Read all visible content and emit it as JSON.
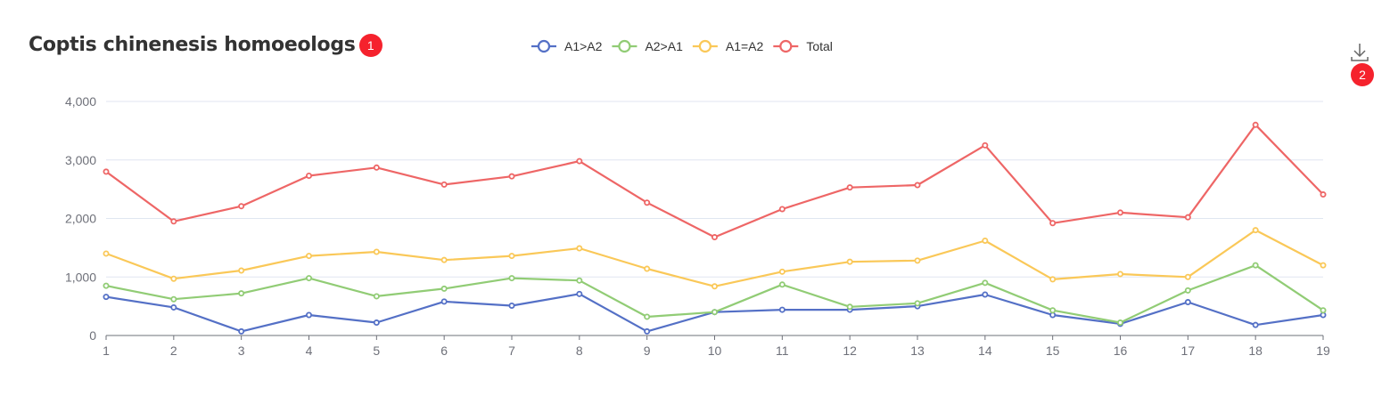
{
  "header": {
    "title": "Coptis chinenesis homoeologs",
    "title_badge": "1",
    "download_badge": "2",
    "download_icon": "download-icon"
  },
  "colors": {
    "A1>A2": "#5470c6",
    "A2>A1": "#91cc75",
    "A1=A2": "#fac858",
    "Total": "#ee6666"
  },
  "chart_data": {
    "type": "line",
    "title": "Coptis chinenesis homoeologs",
    "x": [
      "1",
      "2",
      "3",
      "4",
      "5",
      "6",
      "7",
      "8",
      "9",
      "10",
      "11",
      "12",
      "13",
      "14",
      "15",
      "16",
      "17",
      "18",
      "19"
    ],
    "ylim": [
      0,
      4000
    ],
    "yticks": [
      0,
      1000,
      2000,
      3000,
      4000
    ],
    "ytick_labels": [
      "0",
      "1,000",
      "2,000",
      "3,000",
      "4,000"
    ],
    "grid": true,
    "legend_position": "top-center",
    "series": [
      {
        "name": "A1>A2",
        "values": [
          660,
          480,
          70,
          350,
          220,
          580,
          510,
          710,
          70,
          400,
          440,
          440,
          500,
          700,
          350,
          200,
          570,
          180,
          350
        ]
      },
      {
        "name": "A2>A1",
        "values": [
          850,
          620,
          720,
          980,
          670,
          800,
          980,
          940,
          320,
          400,
          870,
          490,
          550,
          900,
          430,
          220,
          770,
          1200,
          430
        ]
      },
      {
        "name": "A1=A2",
        "values": [
          1400,
          970,
          1110,
          1360,
          1430,
          1290,
          1360,
          1490,
          1140,
          840,
          1090,
          1260,
          1280,
          1620,
          960,
          1050,
          1000,
          1800,
          1200
        ]
      },
      {
        "name": "Total",
        "values": [
          2800,
          1950,
          2210,
          2730,
          2870,
          2580,
          2720,
          2980,
          2270,
          1680,
          2160,
          2530,
          2570,
          3250,
          1920,
          2100,
          2020,
          3600,
          2410
        ]
      }
    ]
  }
}
